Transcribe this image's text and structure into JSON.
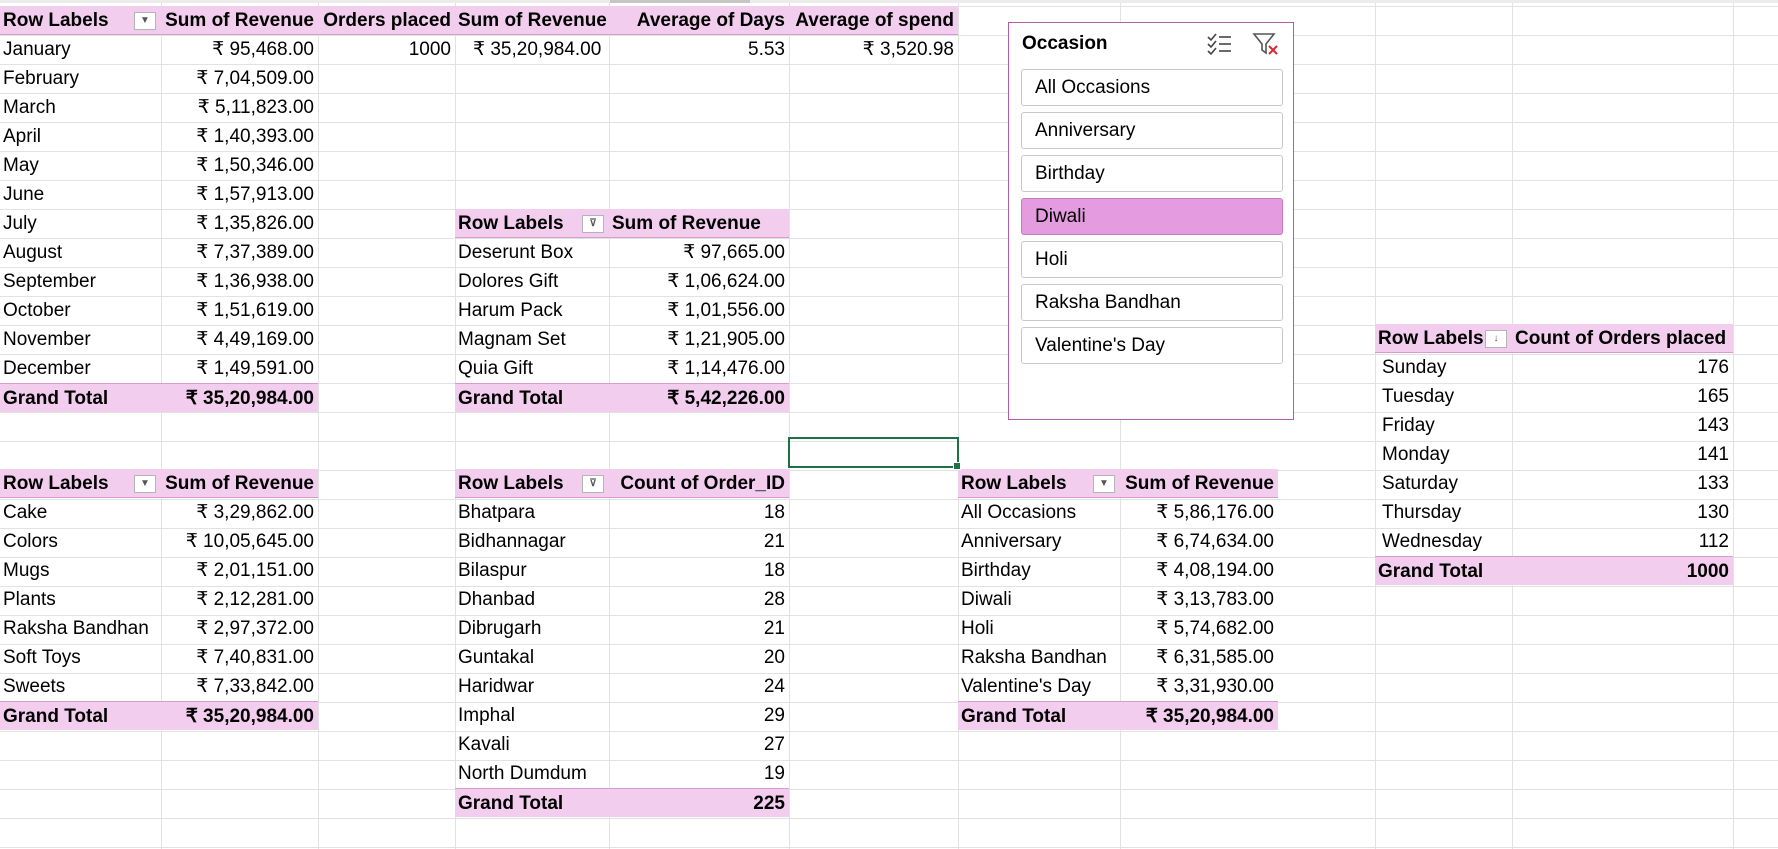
{
  "pivot_month": {
    "headers": [
      "Row Labels",
      "Sum of Revenue",
      "Orders placed",
      "Sum of Revenue",
      "Average of Days",
      "Average of spend"
    ],
    "summary": [
      "1000",
      "₹ 35,20,984.00",
      "5.53",
      "₹ 3,520.98"
    ],
    "rows": [
      {
        "label": "January",
        "value": "₹ 95,468.00"
      },
      {
        "label": "February",
        "value": "₹ 7,04,509.00"
      },
      {
        "label": "March",
        "value": "₹ 5,11,823.00"
      },
      {
        "label": "April",
        "value": "₹ 1,40,393.00"
      },
      {
        "label": "May",
        "value": "₹ 1,50,346.00"
      },
      {
        "label": "June",
        "value": "₹ 1,57,913.00"
      },
      {
        "label": "July",
        "value": "₹ 1,35,826.00"
      },
      {
        "label": "August",
        "value": "₹ 7,37,389.00"
      },
      {
        "label": "September",
        "value": "₹ 1,36,938.00"
      },
      {
        "label": "October",
        "value": "₹ 1,51,619.00"
      },
      {
        "label": "November",
        "value": "₹ 4,49,169.00"
      },
      {
        "label": "December",
        "value": "₹ 1,49,591.00"
      }
    ],
    "total_label": "Grand Total",
    "total_value": "₹ 35,20,984.00"
  },
  "pivot_product": {
    "headers": [
      "Row Labels",
      "Sum of Revenue"
    ],
    "rows": [
      {
        "label": "Deserunt Box",
        "value": "₹ 97,665.00"
      },
      {
        "label": "Dolores Gift",
        "value": "₹ 1,06,624.00"
      },
      {
        "label": "Harum Pack",
        "value": "₹ 1,01,556.00"
      },
      {
        "label": "Magnam Set",
        "value": "₹ 1,21,905.00"
      },
      {
        "label": "Quia Gift",
        "value": "₹ 1,14,476.00"
      }
    ],
    "total_label": "Grand Total",
    "total_value": "₹ 5,42,226.00"
  },
  "pivot_category": {
    "headers": [
      "Row Labels",
      "Sum of Revenue"
    ],
    "rows": [
      {
        "label": "Cake",
        "value": "₹ 3,29,862.00"
      },
      {
        "label": "Colors",
        "value": "₹ 10,05,645.00"
      },
      {
        "label": "Mugs",
        "value": "₹ 2,01,151.00"
      },
      {
        "label": "Plants",
        "value": "₹ 2,12,281.00"
      },
      {
        "label": "Raksha Bandhan",
        "value": "₹ 2,97,372.00"
      },
      {
        "label": "Soft Toys",
        "value": "₹ 7,40,831.00"
      },
      {
        "label": "Sweets",
        "value": "₹ 7,33,842.00"
      }
    ],
    "total_label": "Grand Total",
    "total_value": "₹ 35,20,984.00"
  },
  "pivot_city": {
    "headers": [
      "Row Labels",
      "Count of Order_ID"
    ],
    "rows": [
      {
        "label": "Bhatpara",
        "value": "18"
      },
      {
        "label": "Bidhannagar",
        "value": "21"
      },
      {
        "label": "Bilaspur",
        "value": "18"
      },
      {
        "label": "Dhanbad",
        "value": "28"
      },
      {
        "label": "Dibrugarh",
        "value": "21"
      },
      {
        "label": "Guntakal",
        "value": "20"
      },
      {
        "label": "Haridwar",
        "value": "24"
      },
      {
        "label": "Imphal",
        "value": "29"
      },
      {
        "label": "Kavali",
        "value": "27"
      },
      {
        "label": "North Dumdum",
        "value": "19"
      }
    ],
    "total_label": "Grand Total",
    "total_value": "225"
  },
  "pivot_occasion": {
    "headers": [
      "Row Labels",
      "Sum of Revenue"
    ],
    "rows": [
      {
        "label": "All Occasions",
        "value": "₹ 5,86,176.00"
      },
      {
        "label": "Anniversary",
        "value": "₹ 6,74,634.00"
      },
      {
        "label": "Birthday",
        "value": "₹ 4,08,194.00"
      },
      {
        "label": "Diwali",
        "value": "₹ 3,13,783.00"
      },
      {
        "label": "Holi",
        "value": "₹ 5,74,682.00"
      },
      {
        "label": "Raksha Bandhan",
        "value": "₹ 6,31,585.00"
      },
      {
        "label": "Valentine's Day",
        "value": "₹ 3,31,930.00"
      }
    ],
    "total_label": "Grand Total",
    "total_value": "₹ 35,20,984.00"
  },
  "pivot_weekday": {
    "headers": [
      "Row Labels",
      "Count of Orders placed"
    ],
    "rows": [
      {
        "label": "Sunday",
        "value": "176"
      },
      {
        "label": "Tuesday",
        "value": "165"
      },
      {
        "label": "Friday",
        "value": "143"
      },
      {
        "label": "Monday",
        "value": "141"
      },
      {
        "label": "Saturday",
        "value": "133"
      },
      {
        "label": "Thursday",
        "value": "130"
      },
      {
        "label": "Wednesday",
        "value": "112"
      }
    ],
    "total_label": "Grand Total",
    "total_value": "1000"
  },
  "slicer": {
    "title": "Occasion",
    "multi_select_icon": "multi-select-icon",
    "clear_filter_icon": "clear-filter-icon",
    "items": [
      "All Occasions",
      "Anniversary",
      "Birthday",
      "Diwali",
      "Holi",
      "Raksha Bandhan",
      "Valentine's Day"
    ],
    "selected": "Diwali",
    "accent_color": "#e59be0"
  },
  "colors": {
    "header_fill": "#f2cdee",
    "selection_border": "#1e7145"
  }
}
